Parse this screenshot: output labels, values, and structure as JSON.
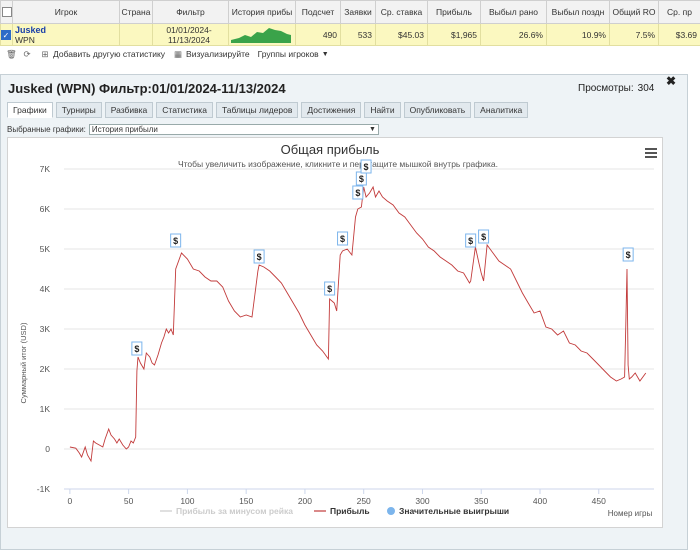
{
  "table": {
    "headers": [
      "Игрок",
      "Страна",
      "Фильтр",
      "История прибы",
      "Подсчет",
      "Заявки",
      "Ср. ставка",
      "Прибыль",
      "Выбыл рано",
      "Выбыл поздн",
      "Общий RO",
      "Ср. пр"
    ],
    "row": {
      "player_name": "Jusked",
      "player_site": "WPN",
      "filter_line1": "01/01/2024-",
      "filter_line2": "11/13/2024",
      "count": "490",
      "entries": "533",
      "avg_stake": "$45.03",
      "profit": "$1,965",
      "early": "26.6%",
      "late": "10.9%",
      "roi": "7.5%",
      "avg_profit": "$3.69"
    }
  },
  "toolbar": {
    "add_stat": "Добавить другую статистику",
    "visualize": "Визуализируйте",
    "player_groups": "Группы игроков"
  },
  "panel": {
    "title": "Jusked (WPN) Фильтр:01/01/2024-11/13/2024",
    "views_label": "Просмотры:",
    "views_value": "304",
    "tabs": [
      "Графики",
      "Турниры",
      "Разбивка",
      "Статистика",
      "Таблицы лидеров",
      "Достижения",
      "Найти",
      "Опубликовать",
      "Аналитика"
    ],
    "selected_label": "Выбранные графики:",
    "selected_value": "История прибыли"
  },
  "colors": {
    "profit_line": "#c23b3b",
    "rake_line": "#cccccc",
    "big_wins": "#7cb5ec"
  },
  "chart_data": {
    "type": "line",
    "title": "Общая прибыль",
    "subtitle": "Чтобы увеличить изображение, кликните и перетащите мышкой внутрь графика.",
    "xlabel": "Номер игры",
    "ylabel": "Суммарный итог (USD)",
    "xlim": [
      -5,
      497
    ],
    "ylim": [
      -1000,
      7000
    ],
    "xticks": [
      0,
      50,
      100,
      150,
      200,
      250,
      300,
      350,
      400,
      450
    ],
    "yticks": [
      -1000,
      0,
      1000,
      2000,
      3000,
      4000,
      5000,
      6000,
      7000
    ],
    "ytick_labels": [
      "-1K",
      "0",
      "1K",
      "2K",
      "3K",
      "4K",
      "5K",
      "6K",
      "7K"
    ],
    "series": [
      {
        "name": "Прибыль",
        "x": [
          0,
          5,
          8,
          10,
          13,
          15,
          18,
          20,
          22,
          25,
          28,
          30,
          33,
          35,
          38,
          40,
          42,
          45,
          48,
          50,
          52,
          54,
          56,
          57,
          58,
          60,
          63,
          65,
          68,
          70,
          72,
          75,
          78,
          80,
          82,
          84,
          86,
          88,
          90,
          95,
          100,
          105,
          110,
          115,
          120,
          125,
          130,
          135,
          140,
          145,
          150,
          155,
          160,
          161,
          165,
          170,
          175,
          180,
          185,
          190,
          195,
          200,
          205,
          210,
          215,
          220,
          221,
          225,
          227,
          230,
          232,
          236,
          240,
          243,
          245,
          248,
          250,
          252,
          255,
          258,
          260,
          263,
          266,
          270,
          275,
          280,
          285,
          290,
          295,
          300,
          305,
          310,
          315,
          320,
          325,
          330,
          335,
          340,
          341,
          345,
          348,
          350,
          352,
          355,
          360,
          365,
          370,
          375,
          380,
          385,
          390,
          395,
          400,
          405,
          410,
          415,
          420,
          425,
          430,
          435,
          440,
          445,
          450,
          455,
          460,
          465,
          469,
          472,
          473,
          474,
          475,
          476,
          478,
          481,
          485,
          490
        ],
        "y": [
          50,
          20,
          -100,
          -200,
          50,
          -150,
          -300,
          200,
          150,
          100,
          50,
          250,
          500,
          350,
          250,
          150,
          250,
          100,
          0,
          50,
          200,
          150,
          300,
          1950,
          2300,
          2150,
          2000,
          2400,
          2300,
          2150,
          2100,
          2350,
          2650,
          2800,
          3000,
          2900,
          3000,
          2850,
          4500,
          4900,
          4750,
          4500,
          4450,
          4300,
          4200,
          4200,
          4050,
          3700,
          3450,
          3300,
          3350,
          3300,
          4450,
          4600,
          4550,
          4450,
          4300,
          4150,
          3900,
          3650,
          3400,
          3100,
          2850,
          2600,
          2450,
          2250,
          3750,
          3650,
          3450,
          4850,
          4950,
          5000,
          4850,
          5800,
          6000,
          6050,
          6550,
          6300,
          6400,
          6550,
          6300,
          6450,
          6300,
          6200,
          6100,
          5900,
          5800,
          5600,
          5400,
          5250,
          5050,
          4950,
          4800,
          4700,
          4600,
          4450,
          4400,
          4150,
          4200,
          5050,
          4650,
          4400,
          4200,
          5100,
          4900,
          4700,
          4600,
          4500,
          4200,
          3900,
          3650,
          3400,
          3450,
          3050,
          3000,
          2850,
          2950,
          2650,
          2600,
          2450,
          2400,
          2250,
          2100,
          1950,
          1800,
          1700,
          1750,
          1800,
          3100,
          4500,
          2100,
          1750,
          1800,
          1900,
          1700,
          1900
        ]
      },
      {
        "name": "Прибыль за минусом рейка",
        "values": []
      },
      {
        "name": "Значительные выигрыши",
        "x": [
          57,
          90,
          161,
          221,
          232,
          245,
          248,
          252,
          341,
          352,
          475
        ],
        "y": [
          2300,
          5000,
          4600,
          3800,
          5050,
          6200,
          6550,
          6850,
          5000,
          5100,
          4650
        ],
        "marker_label": "$"
      }
    ],
    "legend": [
      "Прибыль за минусом рейка",
      "Прибыль",
      "Значительные выигрыши"
    ],
    "legend_position": "bottom"
  }
}
